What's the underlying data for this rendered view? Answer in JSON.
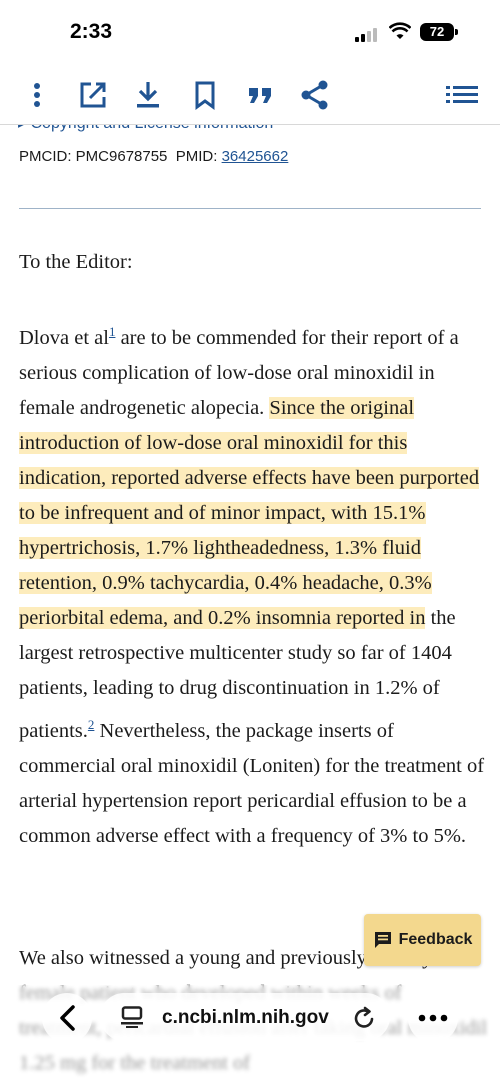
{
  "status": {
    "time": "2:33",
    "battery": "72"
  },
  "toolbar": {
    "icons": [
      "more-vertical-icon",
      "open-external-icon",
      "download-icon",
      "bookmark-icon",
      "cite-quote-icon",
      "share-icon",
      "table-of-contents-icon"
    ]
  },
  "meta": {
    "partial_link": "Copyright and License information",
    "pmcid_label": "PMCID:",
    "pmcid": "PMC9678755",
    "pmid_label": "PMID:",
    "pmid": "36425662"
  },
  "article": {
    "salutation": "To the Editor:",
    "p1_a": "Dlova et al",
    "ref1": "1",
    "p1_b": " are to be commended for their report of a serious complication of low-dose oral minoxidil in female androgenetic alopecia. ",
    "p1_highlight": "Since the original introduction of low-dose oral minoxidil for this indication, reported adverse effects have been purported to be infrequent and of minor impact, with 15.1% hypertrichosis, 1.7% lightheadedness, 1.3% fluid retention, 0.9% tachycardia, 0.4% headache, 0.3% periorbital edema, and 0.2% insomnia reported in",
    "p1_c": " the largest retrospective multicenter study so far of 1404 patients, leading to drug discontinuation in 1.2% of patients.",
    "ref2": "2",
    "p1_d": " Nevertheless, the package inserts of commercial oral minoxidil (Loniten) for the treatment of arterial hypertension report pericardial effusion to be a common adverse effect with a frequency of 3% to 5%.",
    "p2": "We also witnessed a young and previously healthy female patient who developed within weeks of treatment, pericardial effusion after taking oral minoxidil 1.25 mg for the treatment of"
  },
  "feedback": {
    "label": "Feedback"
  },
  "browser": {
    "url": "c.ncbi.nlm.nih.gov"
  },
  "colors": {
    "link": "#205493",
    "highlight": "#fdecbc",
    "feedback_bg": "#f3d88e"
  }
}
